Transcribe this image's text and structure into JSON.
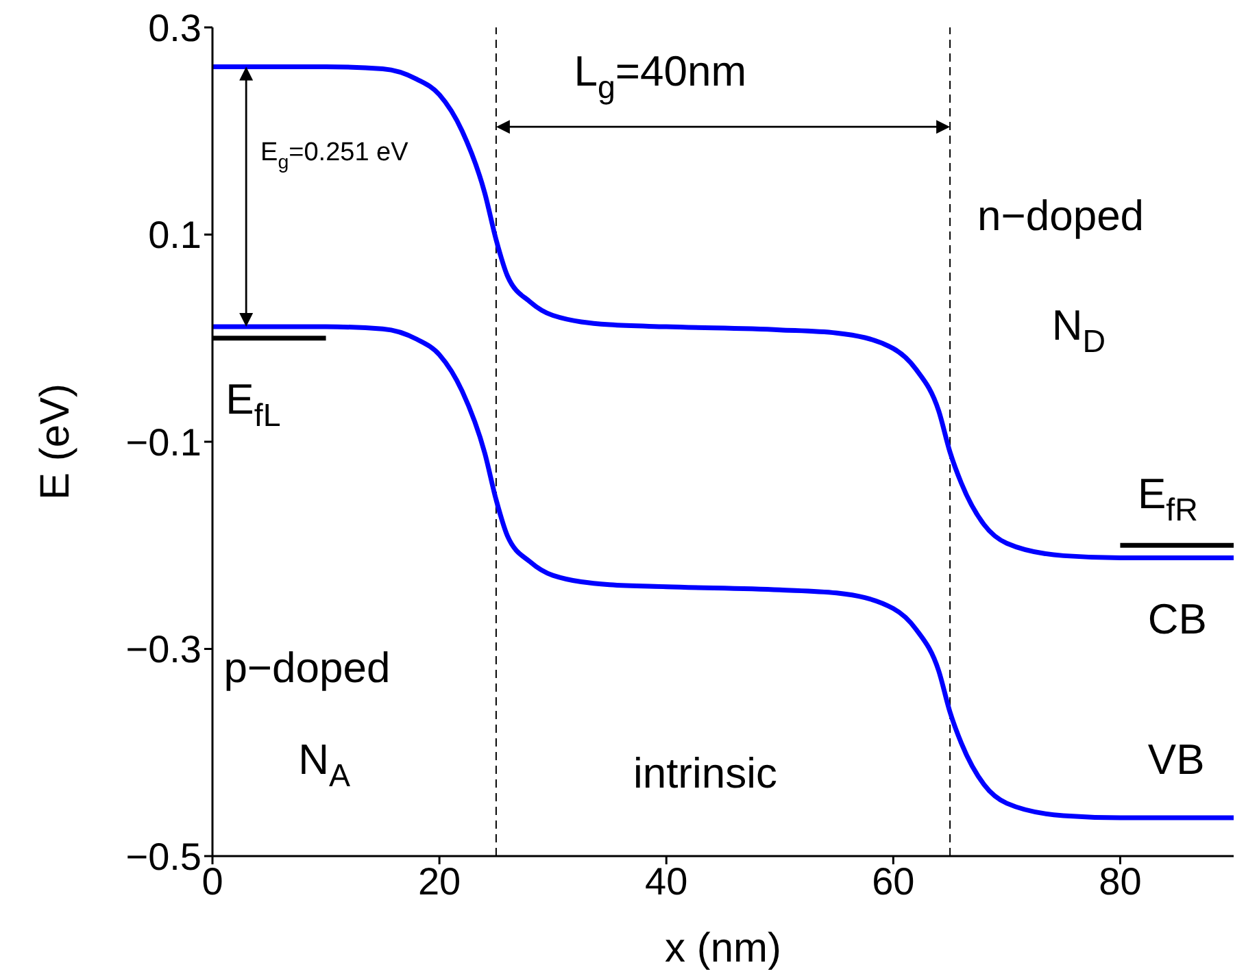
{
  "chart_data": {
    "type": "line",
    "xlabel": "x (nm)",
    "ylabel": "E (eV)",
    "xlim": [
      0,
      90
    ],
    "xticks": [
      0,
      20,
      40,
      60,
      80
    ],
    "ylim": [
      -0.5,
      0.3
    ],
    "yticks": [
      {
        "value": 0.3,
        "label": "0.3"
      },
      {
        "value": 0.1,
        "label": "0.1"
      },
      {
        "value": -0.1,
        "label": "−0.1"
      },
      {
        "value": -0.3,
        "label": "−0.3"
      },
      {
        "value": -0.5,
        "label": "−0.5"
      }
    ],
    "grid": false,
    "legend": false,
    "marker": "none",
    "line_style": "solid",
    "x": [
      0,
      10,
      15,
      18,
      20,
      22,
      24,
      25,
      26,
      28,
      30,
      35,
      40,
      50,
      55,
      60,
      62,
      64,
      65,
      66,
      68,
      70,
      75,
      80,
      90
    ],
    "series": [
      {
        "color": "#0000ff",
        "values": [
          0.262,
          0.262,
          0.26,
          0.25,
          0.235,
          0.2,
          0.14,
          0.095,
          0.06,
          0.035,
          0.022,
          0.013,
          0.011,
          0.008,
          0.005,
          -0.01,
          -0.03,
          -0.07,
          -0.11,
          -0.14,
          -0.18,
          -0.198,
          -0.21,
          -0.212,
          -0.212
        ]
      },
      {
        "color": "#0000ff",
        "values": [
          0.011,
          0.011,
          0.009,
          -0.001,
          -0.016,
          -0.051,
          -0.111,
          -0.156,
          -0.191,
          -0.216,
          -0.229,
          -0.238,
          -0.24,
          -0.243,
          -0.246,
          -0.261,
          -0.281,
          -0.321,
          -0.361,
          -0.391,
          -0.431,
          -0.449,
          -0.461,
          -0.463,
          -0.463
        ]
      },
      {
        "color": "#000000",
        "x": [
          0,
          10
        ],
        "values": [
          0.0,
          0.0
        ]
      },
      {
        "color": "#000000",
        "x": [
          80,
          90
        ],
        "values": [
          -0.2,
          -0.2
        ]
      }
    ],
    "ref_lines": [
      {
        "axis": "x",
        "value": 25,
        "color": "#000000",
        "line_style": "dashed"
      },
      {
        "axis": "x",
        "value": 65,
        "color": "#000000",
        "line_style": "dashed"
      }
    ],
    "annotations": [
      "E$_{g}$=0.251 eV",
      "L$_{g}$=40nm",
      "n−doped",
      "N$_{D}$",
      "E$_{fL}$",
      "E$_{fR}$",
      "CB",
      "VB",
      "p−doped",
      "N$_{A}$",
      "intrinsic"
    ]
  }
}
